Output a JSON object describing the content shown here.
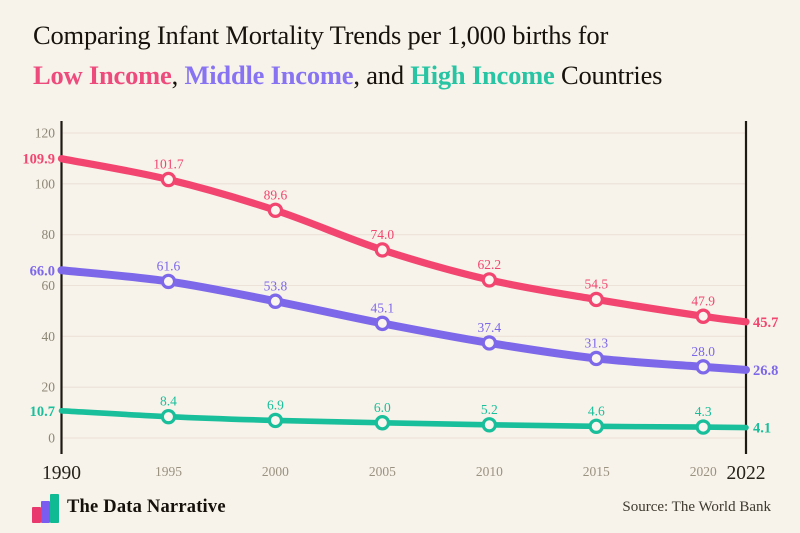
{
  "title": {
    "line1": "Comparing Infant Mortality Trends per 1,000 births for",
    "line2_segments": [
      {
        "text": "Low Income",
        "color": "#ee4b7d",
        "bold": true
      },
      {
        "text": ", ",
        "color": "#17130c",
        "bold": false
      },
      {
        "text": "Middle Income",
        "color": "#8874f2",
        "bold": true
      },
      {
        "text": ", and ",
        "color": "#17130c",
        "bold": false
      },
      {
        "text": "High Income",
        "color": "#27c5a3",
        "bold": true
      },
      {
        "text": " Countries",
        "color": "#17130c",
        "bold": false
      }
    ]
  },
  "chart_data": {
    "type": "line",
    "title": "Comparing Infant Mortality Trends per 1,000 births for Low Income, Middle Income, and High Income Countries",
    "x": [
      1990,
      1995,
      2000,
      2005,
      2010,
      2015,
      2020,
      2022
    ],
    "x_tick_labels": [
      "1990",
      "1995",
      "2000",
      "2005",
      "2010",
      "2015",
      "2020",
      "2022"
    ],
    "series": [
      {
        "name": "Low Income",
        "color": "#f2456f",
        "values": [
          109.9,
          101.7,
          89.6,
          74.0,
          62.2,
          54.5,
          47.9,
          45.7
        ]
      },
      {
        "name": "Middle Income",
        "color": "#7d68ea",
        "values": [
          66.0,
          61.6,
          53.8,
          45.1,
          37.4,
          31.3,
          28.0,
          26.8
        ]
      },
      {
        "name": "High Income",
        "color": "#19bf9b",
        "values": [
          10.7,
          8.4,
          6.9,
          6.0,
          5.2,
          4.6,
          4.3,
          4.1
        ]
      }
    ],
    "ylim": [
      0,
      120
    ],
    "yticks": [
      0,
      20,
      40,
      60,
      80,
      100,
      120
    ],
    "grid": "horizontal",
    "legend": "colored words in title",
    "value_label_format": "one-decimal",
    "edge_labels_bold": true
  },
  "colors": {
    "background": "#f7f2ea",
    "axis": "#1d1913",
    "grid": "#ece2d8",
    "y_tick_text": "#8d8776",
    "minor_year": "#9a9280",
    "major_year": "#27231b",
    "marker_fill": "#faf6ef"
  },
  "footer": {
    "brand": "The Data Narrative",
    "source": "Source: The World Bank",
    "logo_colors": [
      "#e8386d",
      "#7a5cf0",
      "#10ba92"
    ]
  }
}
